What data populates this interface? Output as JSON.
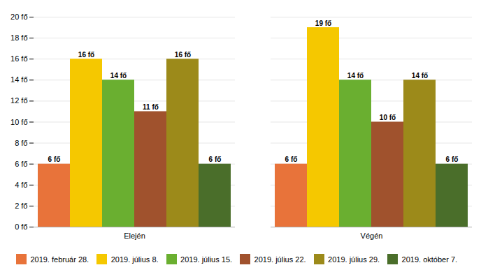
{
  "chart_data": {
    "type": "bar",
    "categories": [
      "Elején",
      "Végén"
    ],
    "series": [
      {
        "name": "2019. február 28.",
        "color": "#E8733A",
        "values": [
          6,
          6
        ],
        "value_labels": [
          "6 fő",
          "6 fő"
        ]
      },
      {
        "name": "2019. július 8.",
        "color": "#F5C800",
        "values": [
          16,
          19
        ],
        "value_labels": [
          "16 fő",
          "19 fő"
        ]
      },
      {
        "name": "2019. július 15.",
        "color": "#6AAF30",
        "values": [
          14,
          14
        ],
        "value_labels": [
          "14 fő",
          "14 fő"
        ]
      },
      {
        "name": "2019. július 22.",
        "color": "#A0522D",
        "values": [
          11,
          10
        ],
        "value_labels": [
          "11 fő",
          "10 fő"
        ]
      },
      {
        "name": "2019. július 29.",
        "color": "#9C8A1A",
        "values": [
          16,
          14
        ],
        "value_labels": [
          "16 fő",
          "14 fő"
        ]
      },
      {
        "name": "2019. október 7.",
        "color": "#4A6E2A",
        "values": [
          6,
          6
        ],
        "value_labels": [
          "6 fő",
          "6 fő"
        ]
      }
    ],
    "ylim": [
      0,
      20
    ],
    "yticks": [
      {
        "value": 0,
        "label": "0 fő"
      },
      {
        "value": 2,
        "label": "2 fő"
      },
      {
        "value": 4,
        "label": "4 fő"
      },
      {
        "value": 6,
        "label": "6 fő"
      },
      {
        "value": 8,
        "label": "8 fő"
      },
      {
        "value": 10,
        "label": "10 fő"
      },
      {
        "value": 12,
        "label": "12 fő"
      },
      {
        "value": 14,
        "label": "14 fő"
      },
      {
        "value": 16,
        "label": "16 fő"
      },
      {
        "value": 18,
        "label": "18 fő"
      },
      {
        "value": 20,
        "label": "20 fő"
      }
    ],
    "grid": true,
    "data_labels": true,
    "legend": "bottom"
  }
}
